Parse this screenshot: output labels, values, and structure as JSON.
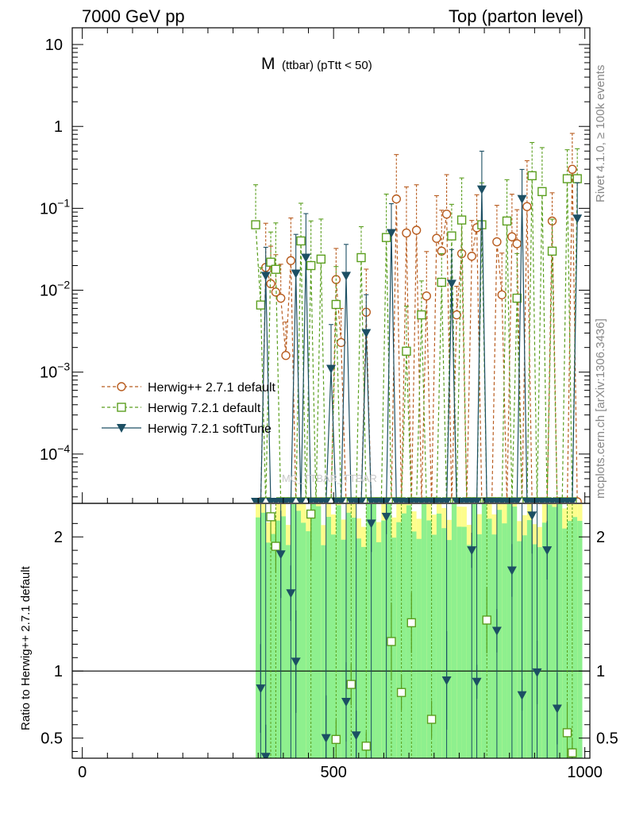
{
  "header": {
    "left": "7000 GeV pp",
    "right": "Top (parton level)"
  },
  "side_labels": {
    "rivet": "Rivet 4.1.0, ≥ 100k events",
    "mcplots": "mcplots.cern.ch [arXiv:1306.3436]"
  },
  "watermark": "MC_TTBAR_TTBAR",
  "chart_data": [
    {
      "id": "main",
      "type": "scatter",
      "title_main": "M",
      "title_sub": "(ttbar) (pTtt < 50)",
      "y_scale": "log",
      "ylim": [
        2.5e-05,
        16
      ],
      "xlim": [
        -20,
        1010
      ],
      "y_ticks": [
        {
          "value": 10,
          "label": "10"
        },
        {
          "value": 1,
          "label": "1"
        },
        {
          "value": 0.1,
          "label": "10",
          "exp": "−1"
        },
        {
          "value": 0.01,
          "label": "10",
          "exp": "−2"
        },
        {
          "value": 0.001,
          "label": "10",
          "exp": "−3"
        },
        {
          "value": 0.0001,
          "label": "10",
          "exp": "−4"
        }
      ],
      "legend_position": "middle-left",
      "series": [
        {
          "name": "Herwig++ 2.7.1 default",
          "color": "#b85c1f",
          "marker": "circle",
          "linestyle": "dashed",
          "points": [
            [
              355,
              2.5e-05
            ],
            [
              365,
              0.019
            ],
            [
              375,
              0.012
            ],
            [
              385,
              0.0095
            ],
            [
              395,
              0.008
            ],
            [
              405,
              0.0016
            ],
            [
              415,
              0.023
            ],
            [
              425,
              2.5e-05
            ],
            [
              435,
              2.5e-05
            ],
            [
              445,
              2.5e-05
            ],
            [
              455,
              2.5e-05
            ],
            [
              465,
              2.5e-05
            ],
            [
              475,
              2.5e-05
            ],
            [
              485,
              2.5e-05
            ],
            [
              495,
              2.5e-05
            ],
            [
              505,
              0.0135
            ],
            [
              515,
              0.0023
            ],
            [
              525,
              2.5e-05
            ],
            [
              535,
              2.5e-05
            ],
            [
              545,
              2.5e-05
            ],
            [
              555,
              2.5e-05
            ],
            [
              565,
              0.0054
            ],
            [
              575,
              2.5e-05
            ],
            [
              585,
              2.5e-05
            ],
            [
              595,
              2.5e-05
            ],
            [
              605,
              2.5e-05
            ],
            [
              615,
              2.5e-05
            ],
            [
              625,
              0.13
            ],
            [
              635,
              2.5e-05
            ],
            [
              645,
              0.05
            ],
            [
              655,
              2.5e-05
            ],
            [
              665,
              0.054
            ],
            [
              675,
              2.5e-05
            ],
            [
              685,
              0.0085
            ],
            [
              695,
              2.5e-05
            ],
            [
              705,
              0.043
            ],
            [
              715,
              0.03
            ],
            [
              725,
              0.085
            ],
            [
              735,
              2.5e-05
            ],
            [
              745,
              0.005
            ],
            [
              755,
              0.028
            ],
            [
              765,
              2.5e-05
            ],
            [
              775,
              0.026
            ],
            [
              785,
              0.058
            ],
            [
              795,
              2.5e-05
            ],
            [
              805,
              2.5e-05
            ],
            [
              815,
              2.5e-05
            ],
            [
              825,
              0.039
            ],
            [
              835,
              0.0088
            ],
            [
              845,
              2.5e-05
            ],
            [
              855,
              0.045
            ],
            [
              865,
              0.037
            ],
            [
              875,
              2.5e-05
            ],
            [
              885,
              0.105
            ],
            [
              895,
              2.5e-05
            ],
            [
              905,
              2.5e-05
            ],
            [
              915,
              2.5e-05
            ],
            [
              925,
              2.5e-05
            ],
            [
              935,
              0.07
            ],
            [
              945,
              2.5e-05
            ],
            [
              955,
              2.5e-05
            ],
            [
              965,
              2.5e-05
            ],
            [
              975,
              0.3
            ],
            [
              985,
              2.5e-05
            ]
          ]
        },
        {
          "name": "Herwig 7.2.1 default",
          "color": "#5a9e1e",
          "marker": "square",
          "linestyle": "dashed",
          "points": [
            [
              345,
              0.063
            ],
            [
              355,
              0.0066
            ],
            [
              365,
              2.5e-05
            ],
            [
              375,
              0.022
            ],
            [
              385,
              0.018
            ],
            [
              395,
              2.5e-05
            ],
            [
              405,
              2.5e-05
            ],
            [
              415,
              2.5e-05
            ],
            [
              425,
              2.5e-05
            ],
            [
              435,
              0.04
            ],
            [
              445,
              2.5e-05
            ],
            [
              455,
              0.02
            ],
            [
              465,
              2.5e-05
            ],
            [
              475,
              0.024
            ],
            [
              485,
              2.5e-05
            ],
            [
              495,
              2.5e-05
            ],
            [
              505,
              0.0067
            ],
            [
              515,
              2.5e-05
            ],
            [
              525,
              2.5e-05
            ],
            [
              535,
              2.5e-05
            ],
            [
              545,
              2.5e-05
            ],
            [
              555,
              0.025
            ],
            [
              565,
              2.5e-05
            ],
            [
              575,
              2.5e-05
            ],
            [
              585,
              2.5e-05
            ],
            [
              595,
              2.5e-05
            ],
            [
              605,
              0.044
            ],
            [
              615,
              2.5e-05
            ],
            [
              625,
              2.5e-05
            ],
            [
              635,
              2.5e-05
            ],
            [
              645,
              0.0018
            ],
            [
              655,
              2.5e-05
            ],
            [
              665,
              2.5e-05
            ],
            [
              675,
              0.005
            ],
            [
              685,
              2.5e-05
            ],
            [
              695,
              2.5e-05
            ],
            [
              705,
              2.5e-05
            ],
            [
              715,
              0.0125
            ],
            [
              725,
              2.5e-05
            ],
            [
              735,
              0.046
            ],
            [
              745,
              2.5e-05
            ],
            [
              755,
              0.072
            ],
            [
              765,
              2.5e-05
            ],
            [
              775,
              2.5e-05
            ],
            [
              785,
              2.5e-05
            ],
            [
              795,
              0.063
            ],
            [
              805,
              2.5e-05
            ],
            [
              815,
              2.5e-05
            ],
            [
              825,
              2.5e-05
            ],
            [
              835,
              2.5e-05
            ],
            [
              845,
              0.07
            ],
            [
              855,
              2.5e-05
            ],
            [
              865,
              0.008
            ],
            [
              875,
              2.5e-05
            ],
            [
              885,
              2.5e-05
            ],
            [
              895,
              0.25
            ],
            [
              905,
              2.5e-05
            ],
            [
              915,
              0.16
            ],
            [
              925,
              2.5e-05
            ],
            [
              935,
              0.03
            ],
            [
              945,
              2.5e-05
            ],
            [
              955,
              2.5e-05
            ],
            [
              965,
              0.23
            ],
            [
              975,
              2.5e-05
            ],
            [
              985,
              0.23
            ]
          ]
        },
        {
          "name": "Herwig 7.2.1 softTune",
          "color": "#1c4f63",
          "marker": "triangle-down",
          "linestyle": "solid",
          "points": [
            [
              345,
              2.5e-05
            ],
            [
              355,
              2.5e-05
            ],
            [
              365,
              0.015
            ],
            [
              375,
              2.5e-05
            ],
            [
              385,
              2.5e-05
            ],
            [
              395,
              2.5e-05
            ],
            [
              405,
              2.5e-05
            ],
            [
              415,
              2.5e-05
            ],
            [
              425,
              0.016
            ],
            [
              435,
              2.5e-05
            ],
            [
              445,
              0.025
            ],
            [
              455,
              2.5e-05
            ],
            [
              465,
              2.5e-05
            ],
            [
              475,
              2.5e-05
            ],
            [
              485,
              2.5e-05
            ],
            [
              495,
              0.0011
            ],
            [
              505,
              2.5e-05
            ],
            [
              515,
              2.5e-05
            ],
            [
              525,
              0.015
            ],
            [
              535,
              2.5e-05
            ],
            [
              545,
              2.5e-05
            ],
            [
              555,
              2.5e-05
            ],
            [
              565,
              0.003
            ],
            [
              575,
              2.5e-05
            ],
            [
              585,
              2.5e-05
            ],
            [
              595,
              2.5e-05
            ],
            [
              605,
              2.5e-05
            ],
            [
              615,
              0.05
            ],
            [
              625,
              2.5e-05
            ],
            [
              635,
              2.5e-05
            ],
            [
              645,
              2.5e-05
            ],
            [
              655,
              2.5e-05
            ],
            [
              665,
              2.5e-05
            ],
            [
              675,
              2.5e-05
            ],
            [
              685,
              2.5e-05
            ],
            [
              695,
              2.5e-05
            ],
            [
              705,
              2.5e-05
            ],
            [
              715,
              2.5e-05
            ],
            [
              725,
              2.5e-05
            ],
            [
              735,
              0.012
            ],
            [
              745,
              2.5e-05
            ],
            [
              755,
              2.5e-05
            ],
            [
              765,
              2.5e-05
            ],
            [
              775,
              2.5e-05
            ],
            [
              785,
              2.5e-05
            ],
            [
              795,
              0.17
            ],
            [
              805,
              2.5e-05
            ],
            [
              815,
              2.5e-05
            ],
            [
              825,
              2.5e-05
            ],
            [
              835,
              2.5e-05
            ],
            [
              845,
              2.5e-05
            ],
            [
              855,
              2.5e-05
            ],
            [
              865,
              2.5e-05
            ],
            [
              875,
              0.13
            ],
            [
              885,
              2.5e-05
            ],
            [
              895,
              2.5e-05
            ],
            [
              905,
              2.5e-05
            ],
            [
              915,
              2.5e-05
            ],
            [
              925,
              2.5e-05
            ],
            [
              935,
              2.5e-05
            ],
            [
              945,
              2.5e-05
            ],
            [
              955,
              2.5e-05
            ],
            [
              965,
              2.5e-05
            ],
            [
              975,
              2.5e-05
            ],
            [
              985,
              0.075
            ]
          ]
        }
      ]
    },
    {
      "id": "ratio",
      "type": "scatter",
      "ylabel": "Ratio to Herwig++ 2.7.1 default",
      "xlim": [
        -20,
        1010
      ],
      "ylim": [
        0.35,
        2.25
      ],
      "y_ticks": [
        {
          "value": 2,
          "label": "2"
        },
        {
          "value": 1,
          "label": "1"
        },
        {
          "value": 0.5,
          "label": "0.5"
        }
      ],
      "x_ticks": [
        {
          "value": 0,
          "label": "0"
        },
        {
          "value": 500,
          "label": "500"
        },
        {
          "value": 1000,
          "label": "1000"
        }
      ],
      "reference_line": 1,
      "band_range": [
        345,
        995
      ],
      "series": [
        {
          "name": "Herwig 7.2.1 default",
          "color": "#5a9e1e",
          "marker": "square",
          "points": [
            [
              375,
              2.15
            ],
            [
              385,
              1.93
            ],
            [
              455,
              2.17
            ],
            [
              505,
              0.49
            ],
            [
              535,
              0.9
            ],
            [
              565,
              0.44
            ],
            [
              615,
              1.22
            ],
            [
              635,
              0.84
            ],
            [
              655,
              1.36
            ],
            [
              695,
              0.64
            ],
            [
              805,
              1.38
            ],
            [
              965,
              0.54
            ],
            [
              975,
              0.39
            ]
          ]
        },
        {
          "name": "Herwig 7.2.1 softTune",
          "color": "#1c4f63",
          "marker": "triangle-down",
          "points": [
            [
              355,
              0.87
            ],
            [
              365,
              0.36
            ],
            [
              395,
              1.87
            ],
            [
              415,
              1.58
            ],
            [
              425,
              1.07
            ],
            [
              485,
              0.5
            ],
            [
              525,
              0.77
            ],
            [
              545,
              0.52
            ],
            [
              575,
              2.1
            ],
            [
              605,
              2.15
            ],
            [
              725,
              0.93
            ],
            [
              775,
              1.9
            ],
            [
              785,
              0.92
            ],
            [
              825,
              1.3
            ],
            [
              855,
              1.75
            ],
            [
              875,
              0.82
            ],
            [
              895,
              2.16
            ],
            [
              905,
              0.99
            ],
            [
              925,
              1.9
            ],
            [
              945,
              0.72
            ]
          ]
        }
      ]
    }
  ]
}
